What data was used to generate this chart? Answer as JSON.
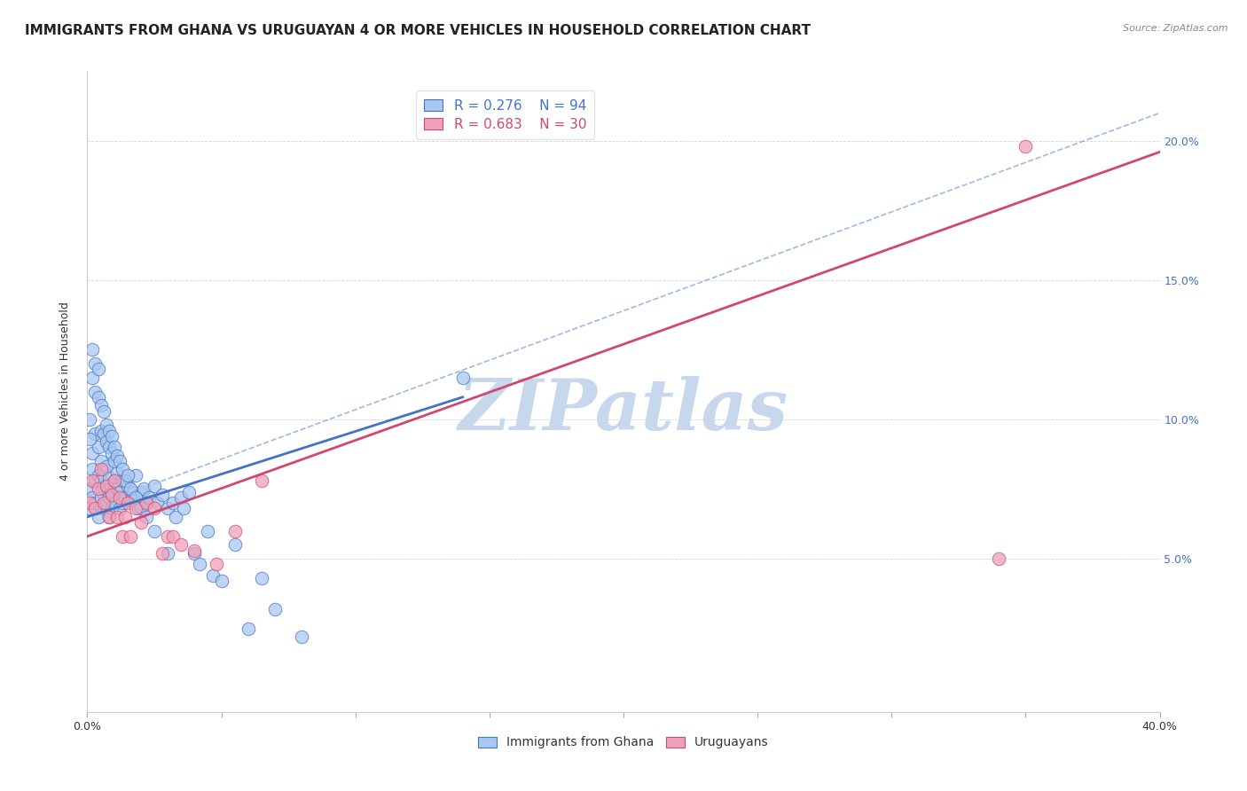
{
  "title": "IMMIGRANTS FROM GHANA VS URUGUAYAN 4 OR MORE VEHICLES IN HOUSEHOLD CORRELATION CHART",
  "source": "Source: ZipAtlas.com",
  "ylabel": "4 or more Vehicles in Household",
  "xlim": [
    0.0,
    0.4
  ],
  "ylim": [
    -0.005,
    0.225
  ],
  "yticks_right": [
    0.05,
    0.1,
    0.15,
    0.2
  ],
  "yticklabels_right": [
    "5.0%",
    "10.0%",
    "15.0%",
    "20.0%"
  ],
  "legend_r1": "R = 0.276",
  "legend_n1": "N = 94",
  "legend_r2": "R = 0.683",
  "legend_n2": "N = 30",
  "color_blue": "#A8C8F0",
  "color_pink": "#F0A0B8",
  "color_blue_line": "#4472C4",
  "color_pink_line": "#D04870",
  "color_dashed_line": "#AABBCC",
  "watermark": "ZIPatlas",
  "watermark_color": "#C8D8EC",
  "title_fontsize": 11,
  "label_fontsize": 9,
  "tick_fontsize": 9,
  "background_color": "#FFFFFF",
  "grid_color": "#CCCCCC",
  "blue_scatter_x": [
    0.001,
    0.001,
    0.002,
    0.002,
    0.002,
    0.003,
    0.003,
    0.003,
    0.004,
    0.004,
    0.004,
    0.005,
    0.005,
    0.005,
    0.006,
    0.006,
    0.006,
    0.007,
    0.007,
    0.007,
    0.008,
    0.008,
    0.008,
    0.009,
    0.009,
    0.01,
    0.01,
    0.011,
    0.011,
    0.012,
    0.012,
    0.013,
    0.013,
    0.014,
    0.015,
    0.016,
    0.017,
    0.018,
    0.019,
    0.02,
    0.021,
    0.022,
    0.023,
    0.025,
    0.026,
    0.028,
    0.03,
    0.032,
    0.033,
    0.035,
    0.036,
    0.038,
    0.04,
    0.042,
    0.045,
    0.047,
    0.05,
    0.055,
    0.06,
    0.065,
    0.07,
    0.08,
    0.001,
    0.001,
    0.002,
    0.002,
    0.003,
    0.003,
    0.004,
    0.004,
    0.005,
    0.005,
    0.006,
    0.006,
    0.007,
    0.007,
    0.008,
    0.008,
    0.009,
    0.009,
    0.01,
    0.01,
    0.011,
    0.012,
    0.013,
    0.014,
    0.015,
    0.016,
    0.018,
    0.02,
    0.022,
    0.025,
    0.03,
    0.14
  ],
  "blue_scatter_y": [
    0.075,
    0.068,
    0.082,
    0.072,
    0.088,
    0.078,
    0.07,
    0.095,
    0.065,
    0.08,
    0.09,
    0.072,
    0.078,
    0.085,
    0.068,
    0.075,
    0.082,
    0.07,
    0.076,
    0.083,
    0.065,
    0.072,
    0.079,
    0.068,
    0.074,
    0.078,
    0.07,
    0.075,
    0.081,
    0.068,
    0.074,
    0.07,
    0.078,
    0.072,
    0.076,
    0.071,
    0.074,
    0.08,
    0.068,
    0.074,
    0.075,
    0.07,
    0.072,
    0.076,
    0.07,
    0.073,
    0.068,
    0.07,
    0.065,
    0.072,
    0.068,
    0.074,
    0.052,
    0.048,
    0.06,
    0.044,
    0.042,
    0.055,
    0.025,
    0.043,
    0.032,
    0.022,
    0.093,
    0.1,
    0.115,
    0.125,
    0.11,
    0.12,
    0.108,
    0.118,
    0.096,
    0.105,
    0.095,
    0.103,
    0.092,
    0.098,
    0.09,
    0.096,
    0.088,
    0.094,
    0.085,
    0.09,
    0.087,
    0.085,
    0.082,
    0.078,
    0.08,
    0.075,
    0.072,
    0.068,
    0.065,
    0.06,
    0.052,
    0.115
  ],
  "pink_scatter_x": [
    0.001,
    0.002,
    0.003,
    0.004,
    0.005,
    0.006,
    0.007,
    0.008,
    0.009,
    0.01,
    0.011,
    0.012,
    0.013,
    0.014,
    0.015,
    0.016,
    0.018,
    0.02,
    0.022,
    0.025,
    0.028,
    0.03,
    0.032,
    0.035,
    0.04,
    0.048,
    0.055,
    0.065,
    0.34,
    0.35
  ],
  "pink_scatter_y": [
    0.07,
    0.078,
    0.068,
    0.075,
    0.082,
    0.07,
    0.076,
    0.065,
    0.073,
    0.078,
    0.065,
    0.072,
    0.058,
    0.065,
    0.07,
    0.058,
    0.068,
    0.063,
    0.07,
    0.068,
    0.052,
    0.058,
    0.058,
    0.055,
    0.053,
    0.048,
    0.06,
    0.078,
    0.05,
    0.198
  ],
  "blue_line_x": [
    0.0,
    0.14
  ],
  "blue_line_y": [
    0.065,
    0.108
  ],
  "dashed_line_x": [
    0.0,
    0.4
  ],
  "dashed_line_y": [
    0.068,
    0.21
  ],
  "pink_line_x": [
    0.0,
    0.4
  ],
  "pink_line_y": [
    0.058,
    0.196
  ]
}
